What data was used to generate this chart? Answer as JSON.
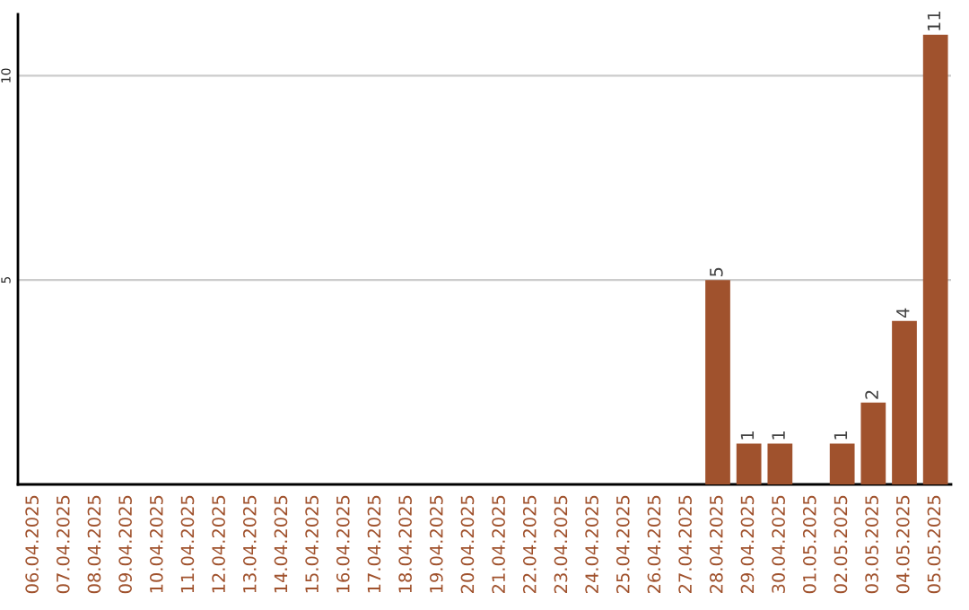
{
  "chart_data": {
    "type": "bar",
    "categories": [
      "06.04.2025",
      "07.04.2025",
      "08.04.2025",
      "09.04.2025",
      "10.04.2025",
      "11.04.2025",
      "12.04.2025",
      "13.04.2025",
      "14.04.2025",
      "15.04.2025",
      "16.04.2025",
      "17.04.2025",
      "18.04.2025",
      "19.04.2025",
      "20.04.2025",
      "21.04.2025",
      "22.04.2025",
      "23.04.2025",
      "24.04.2025",
      "25.04.2025",
      "26.04.2025",
      "27.04.2025",
      "28.04.2025",
      "29.04.2025",
      "30.04.2025",
      "01.05.2025",
      "02.05.2025",
      "03.05.2025",
      "04.05.2025",
      "05.05.2025"
    ],
    "values": [
      null,
      null,
      null,
      null,
      null,
      null,
      null,
      null,
      null,
      null,
      null,
      null,
      null,
      null,
      null,
      null,
      null,
      null,
      null,
      null,
      null,
      null,
      5,
      1,
      1,
      null,
      1,
      2,
      4,
      11
    ],
    "value_labels": [
      null,
      null,
      null,
      null,
      null,
      null,
      null,
      null,
      null,
      null,
      null,
      null,
      null,
      null,
      null,
      null,
      null,
      null,
      null,
      null,
      null,
      null,
      "5",
      "1",
      "1",
      null,
      "1",
      "2",
      "4",
      "11"
    ],
    "color": "#a0522d",
    "ylim": [
      0,
      11.5
    ],
    "yticks": [
      5,
      10
    ],
    "grid": "y"
  }
}
